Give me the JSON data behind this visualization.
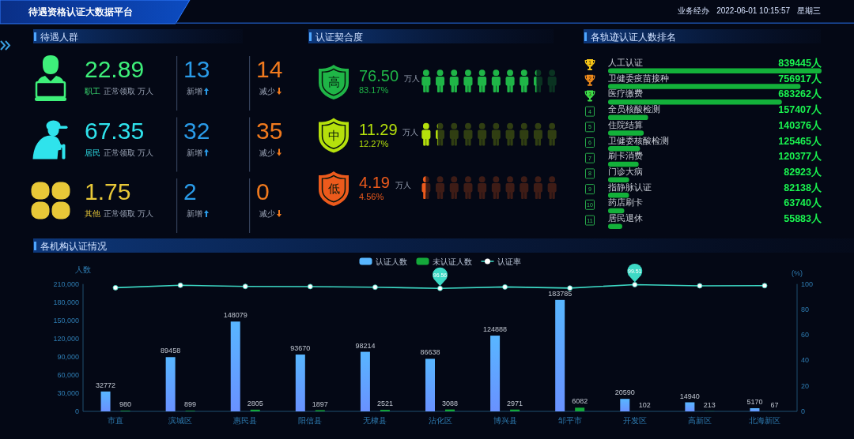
{
  "chart_data": [
    {
      "type": "other",
      "title": "待遇资格认证大数据平台",
      "annotations": [
        "业务经办",
        "2022-06-01 10:15:57",
        "星期三"
      ]
    },
    {
      "type": "other",
      "title": "待遇人群",
      "categories": [
        "职工",
        "居民",
        "其他"
      ],
      "colors": [
        "#3ef07a",
        "#2fe3ec",
        "#e8c838"
      ],
      "series": [
        {
          "name": "正常领取 万人",
          "values": [
            22.89,
            67.35,
            1.75
          ]
        },
        {
          "name": "新增",
          "color": "#2a9be8",
          "values": [
            13,
            32,
            2
          ]
        },
        {
          "name": "减少",
          "color": "#f07a1e",
          "values": [
            14,
            35,
            0
          ]
        }
      ],
      "data_labels": true
    },
    {
      "type": "other",
      "title": "认证契合度",
      "categories": [
        "高",
        "中",
        "低"
      ],
      "colors": [
        "#1fb547",
        "#b5e00c",
        "#ec5a1c"
      ],
      "values": [
        83.17,
        12.27,
        4.56
      ],
      "value_labels": [
        "83.17%",
        "12.27%",
        "4.56%"
      ],
      "annotations": [
        "76.50 万人",
        "11.29 万人",
        "4.19 万人"
      ]
    },
    {
      "type": "bar",
      "orientation": "horizontal",
      "title": "各轨迹认证人数排名",
      "categories": [
        "人工认证",
        "卫健委疫苗接种",
        "医疗缴费",
        "全员核酸检测",
        "住院结算",
        "卫健委核酸检测",
        "刷卡消费",
        "门诊大病",
        "指静脉认证",
        "药店刷卡",
        "居民退休"
      ],
      "values": [
        839445,
        756917,
        683262,
        157407,
        140376,
        125465,
        120377,
        82923,
        82138,
        63740,
        55883
      ],
      "value_labels": [
        "839445人",
        "756917人",
        "683262人",
        "157407人",
        "140376人",
        "125465人",
        "120377人",
        "82923人",
        "82138人",
        "63740人",
        "55883人"
      ],
      "color": "#13b13a",
      "tick_labels": "y",
      "annotations": [
        "1",
        "2",
        "3",
        "4",
        "5",
        "6",
        "7",
        "8",
        "9",
        "10",
        "11"
      ]
    },
    {
      "type": "bar",
      "title": "各机构认证情况",
      "categories": [
        "市直",
        "滨城区",
        "惠民县",
        "阳信县",
        "无棣县",
        "沾化区",
        "博兴县",
        "邹平市",
        "开发区",
        "高新区",
        "北海新区"
      ],
      "ylabel": "人数",
      "y2label": "(%)",
      "ylim": [
        0,
        210000
      ],
      "yticks": [
        0,
        {
          "value": 30000,
          "label": "30,000"
        },
        {
          "value": 60000,
          "label": "60,000"
        },
        {
          "value": 90000,
          "label": "90,000"
        },
        {
          "value": 120000,
          "label": "120,000"
        },
        {
          "value": 150000,
          "label": "150,000"
        },
        {
          "value": 180000,
          "label": "180,000"
        },
        {
          "value": 210000,
          "label": "210,000"
        }
      ],
      "y2lim": [
        0,
        100
      ],
      "y2ticks": [
        0,
        20,
        40,
        60,
        80,
        100
      ],
      "legend": "top",
      "data_labels": true,
      "series": [
        {
          "name": "认证人数",
          "color": "#58b6ff",
          "values": [
            32772,
            89458,
            148079,
            93670,
            98214,
            86638,
            124888,
            183785,
            20590,
            14940,
            5170
          ]
        },
        {
          "name": "未认证人数",
          "color": "#14a83a",
          "values": [
            980,
            899,
            2805,
            1897,
            2521,
            3088,
            2971,
            6082,
            102,
            213,
            67
          ]
        },
        {
          "name": "认证率",
          "type": "line",
          "axis": "y2",
          "color": "#3dd9c5",
          "marker": "circle",
          "values": [
            97.1,
            99.0,
            98.1,
            98.0,
            97.5,
            96.56,
            97.7,
            96.8,
            99.51,
            98.6,
            98.7
          ],
          "value_labels": [
            null,
            null,
            null,
            null,
            null,
            "96.56",
            null,
            null,
            "99.51",
            null,
            null
          ]
        }
      ]
    }
  ]
}
